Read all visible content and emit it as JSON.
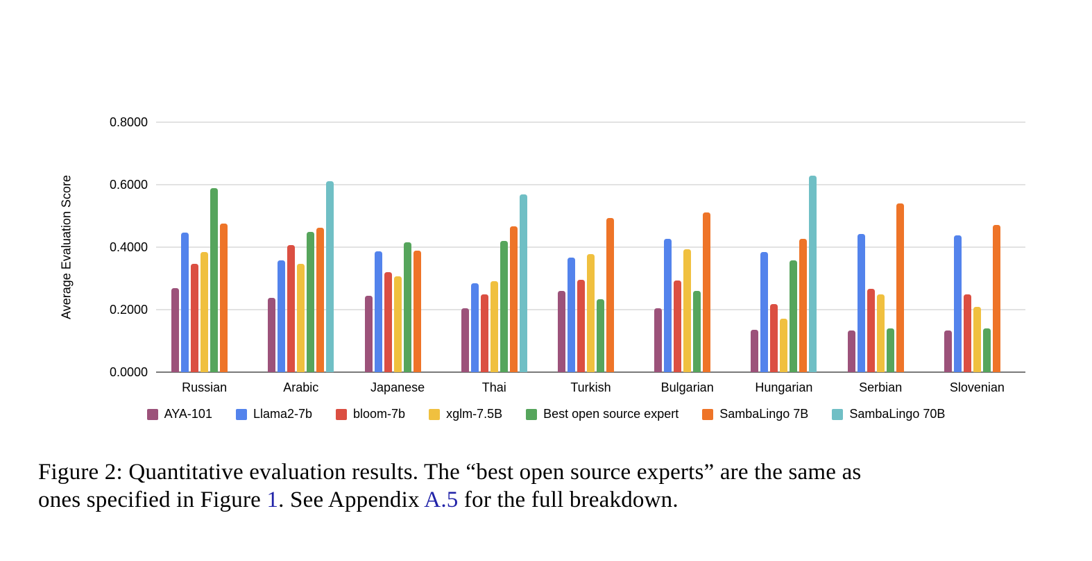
{
  "chart_data": {
    "type": "bar",
    "title": "",
    "xlabel": "",
    "ylabel": "Average Evaluation Score",
    "ylim": [
      0,
      0.8
    ],
    "ytick_labels": [
      "0.0000",
      "0.2000",
      "0.4000",
      "0.6000",
      "0.8000"
    ],
    "ytick_values": [
      0,
      0.2,
      0.4,
      0.6,
      0.8
    ],
    "grid": true,
    "legend_position": "bottom",
    "background": "#ffffff",
    "gridline_color": "#e2e2e2",
    "axis_line_color": "#7a7a7a",
    "text_color": "#000000",
    "categories": [
      "Russian",
      "Arabic",
      "Japanese",
      "Thai",
      "Turkish",
      "Bulgarian",
      "Hungarian",
      "Serbian",
      "Slovenian"
    ],
    "series": [
      {
        "name": "AYA-101",
        "color": "#9c527a",
        "values": [
          0.268,
          0.237,
          0.244,
          0.204,
          0.259,
          0.205,
          0.135,
          0.133,
          0.133
        ]
      },
      {
        "name": "Llama2-7b",
        "color": "#5383ec",
        "values": [
          0.446,
          0.357,
          0.386,
          0.285,
          0.367,
          0.426,
          0.385,
          0.443,
          0.437
        ]
      },
      {
        "name": "bloom-7b",
        "color": "#db4f42",
        "values": [
          0.346,
          0.406,
          0.319,
          0.25,
          0.295,
          0.293,
          0.218,
          0.267,
          0.25
        ]
      },
      {
        "name": "xglm-7.5B",
        "color": "#f0c03f",
        "values": [
          0.385,
          0.346,
          0.306,
          0.291,
          0.377,
          0.393,
          0.172,
          0.25,
          0.21
        ]
      },
      {
        "name": "Best open source expert",
        "color": "#56a55c",
        "values": [
          0.588,
          0.449,
          0.415,
          0.421,
          0.233,
          0.259,
          0.358,
          0.139,
          0.141
        ]
      },
      {
        "name": "SambaLingo 7B",
        "color": "#ee7428",
        "values": [
          0.475,
          0.463,
          0.39,
          0.467,
          0.493,
          0.511,
          0.426,
          0.539,
          0.472
        ]
      },
      {
        "name": "SambaLingo 70B",
        "color": "#70bfc5",
        "values": [
          null,
          0.611,
          null,
          0.57,
          null,
          null,
          0.63,
          null,
          null
        ]
      }
    ]
  },
  "caption": {
    "link_color": "#2123a8",
    "lines": [
      [
        {
          "text": "Figure 2: Quantitative evaluation results. The “best open source experts” are the same as",
          "link": false
        }
      ],
      [
        {
          "text": "ones specified in Figure ",
          "link": false
        },
        {
          "text": "1",
          "link": true,
          "name": "figure-1-link"
        },
        {
          "text": ". See Appendix ",
          "link": false
        },
        {
          "text": "A.5",
          "link": true,
          "name": "appendix-a5-link"
        },
        {
          "text": " for the full breakdown.",
          "link": false
        }
      ]
    ]
  }
}
